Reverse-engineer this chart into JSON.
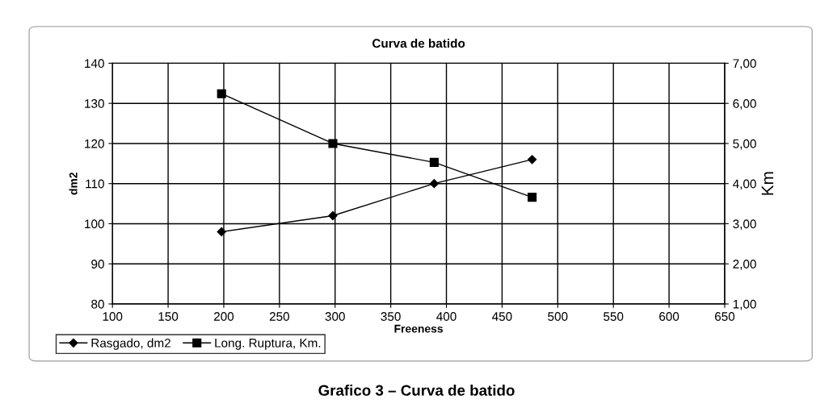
{
  "chart_data": {
    "type": "line",
    "title": "Curva de batido",
    "xlabel": "Freeness",
    "ylabel": "dm2",
    "y2label": "Km",
    "annotations": [
      "Grafico 3 – Curva de batido"
    ],
    "series": [
      {
        "name": "Rasgado, dm2",
        "color": "#000000",
        "marker": "diamond",
        "x": [
          198,
          298,
          389,
          477
        ],
        "values": [
          98,
          102,
          110,
          116
        ]
      },
      {
        "name": "Long. Ruptura, Km.",
        "color": "#000000",
        "marker": "square",
        "axis": "y2",
        "x": [
          198,
          298,
          389,
          477
        ],
        "values": [
          6.24,
          5.0,
          4.53,
          3.66
        ]
      }
    ],
    "xlim": [
      100,
      650
    ],
    "xticks": [
      100,
      150,
      200,
      250,
      300,
      350,
      400,
      450,
      500,
      550,
      600,
      650
    ],
    "ylim": [
      80,
      140
    ],
    "yticks": [
      80,
      90,
      100,
      110,
      120,
      130,
      140
    ],
    "y2lim": [
      1,
      7
    ],
    "y2ticks": [
      {
        "value": 1,
        "label": "1,00"
      },
      {
        "value": 2,
        "label": "2,00"
      },
      {
        "value": 3,
        "label": "3,00"
      },
      {
        "value": 4,
        "label": "4,00"
      },
      {
        "value": 5,
        "label": "5,00"
      },
      {
        "value": 6,
        "label": "6,00"
      },
      {
        "value": 7,
        "label": "7,00"
      }
    ],
    "grid": true,
    "legend": "bottom left",
    "line_style": "solid"
  }
}
